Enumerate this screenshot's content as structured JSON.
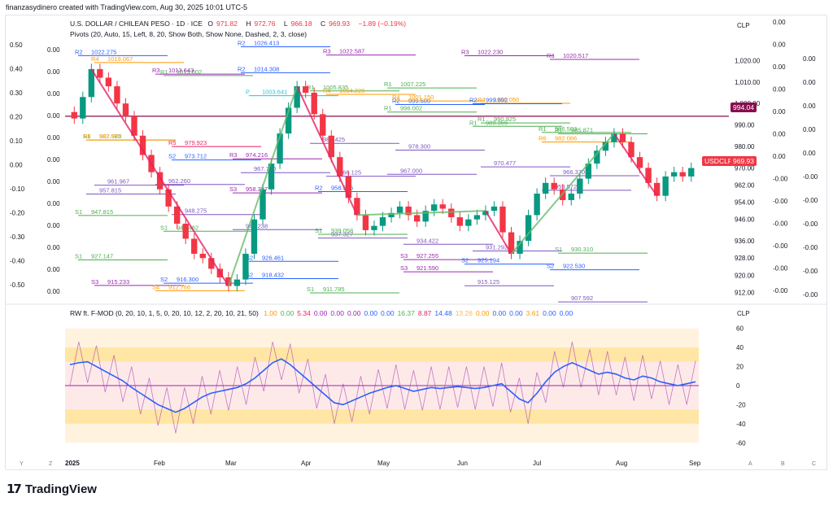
{
  "header": {
    "created_by": "finanzasydinero created with TradingView.com, Aug 30, 2025 10:01 UTC-5"
  },
  "symbol": {
    "title": "U.S. DOLLAR / CHILEAN PESO · 1D · ICE",
    "ohlc": {
      "o_label": "O",
      "o": "971.82",
      "h_label": "H",
      "h": "972.76",
      "l_label": "L",
      "l": "966.18",
      "c_label": "C",
      "c": "969.93",
      "change": "−1.89 (−0.19%)"
    },
    "ticker_badge": "USDCLP",
    "last_price": "969.93",
    "line_price": "994.04",
    "currency": "CLP"
  },
  "indicators": {
    "pivots": "Pivots (20, Auto, 15, Left, 8, 20, Show Both, Show None, Dashed, 2, 3, close)",
    "oscillator_title": "RW ft. F-MOD (0, 20, 10, 1, 5, 0, 20, 10, 12, 2, 20, 10, 21, 50)",
    "oscillator_values": [
      {
        "v": "1.00",
        "c": "#ff9800"
      },
      {
        "v": "0.00",
        "c": "#4caf50"
      },
      {
        "v": "5.34",
        "c": "#e91e63"
      },
      {
        "v": "0.00",
        "c": "#9c27b0"
      },
      {
        "v": "0.00",
        "c": "#9c27b0"
      },
      {
        "v": "0.00",
        "c": "#9c27b0"
      },
      {
        "v": "0.00",
        "c": "#2962ff"
      },
      {
        "v": "0.00",
        "c": "#2962ff"
      },
      {
        "v": "16.37",
        "c": "#4caf50"
      },
      {
        "v": "8.87",
        "c": "#e91e63"
      },
      {
        "v": "14.48",
        "c": "#2962ff"
      },
      {
        "v": "13.26",
        "c": "#ffb74d"
      },
      {
        "v": "0.00",
        "c": "#ff9800"
      },
      {
        "v": "0.00",
        "c": "#2962ff"
      },
      {
        "v": "0.00",
        "c": "#2962ff"
      },
      {
        "v": "3.61",
        "c": "#ff9800"
      },
      {
        "v": "0.00",
        "c": "#2962ff"
      },
      {
        "v": "0.00",
        "c": "#2962ff"
      }
    ]
  },
  "chart_data": {
    "type": "candlestick",
    "x_ticks": [
      "2025",
      "Feb",
      "Mar",
      "Apr",
      "May",
      "Jun",
      "Jul",
      "Aug",
      "Sep"
    ],
    "price_axis_ticks": [
      "1,020.00",
      "1,010.00",
      "1,000.00",
      "990.00",
      "980.00",
      "970.00",
      "962.00",
      "954.00",
      "946.00",
      "936.00",
      "928.00",
      "920.00",
      "912.00"
    ],
    "left_scale": [
      "0.50",
      "0.40",
      "0.30",
      "0.20",
      "0.10",
      "0.00",
      "-0.10",
      "-0.20",
      "-0.30",
      "-0.40",
      "-0.50"
    ],
    "left_scale2": [
      "0.00",
      "0.00",
      "0.00",
      "0.00",
      "0.00",
      "0.00",
      "0.00",
      "0.00",
      "0.00",
      "0.00",
      "0.00",
      "0.00"
    ],
    "right_scale": [
      "0.00",
      "0.00",
      "0.00",
      "0.00",
      "0.00",
      "0.00",
      "0.00",
      "-0.00",
      "-0.00",
      "-0.00",
      "-0.00",
      "-0.00",
      "-0.00"
    ],
    "far_right_scale": [
      "0.00",
      "0.00",
      "0.00",
      "0.00",
      "0.00",
      "-0.00",
      "-0.00",
      "-0.00",
      "-0.00",
      "-0.00",
      "-0.00"
    ],
    "closes": [
      993,
      1003,
      1016,
      1012,
      1008,
      1000,
      994,
      985,
      976,
      968,
      960,
      952,
      944,
      937,
      930,
      928,
      923,
      919,
      915,
      918,
      930,
      946,
      960,
      972,
      986,
      998,
      1008,
      1005,
      995,
      985,
      975,
      966,
      956,
      948,
      941,
      943,
      947,
      949,
      952,
      948,
      945,
      950,
      953,
      951,
      947,
      943,
      946,
      948,
      950,
      952,
      940,
      930,
      936,
      948,
      958,
      963,
      960,
      955,
      958,
      965,
      972,
      978,
      982,
      986,
      982,
      975,
      970,
      963,
      957,
      966,
      968,
      966,
      969.93
    ],
    "pivot_levels": [
      {
        "label": "R2",
        "value": "1022.275"
      },
      {
        "label": "R1",
        "value": "1013.002"
      },
      {
        "label": "P",
        "value": "1003.641"
      },
      {
        "label": "R1",
        "value": "1005.835"
      },
      {
        "label": "R2",
        "value": "999.500"
      },
      {
        "label": "R1",
        "value": "990.925"
      },
      {
        "label": "R1",
        "value": "986.503"
      },
      {
        "label": "S1",
        "value": "982.985"
      },
      {
        "label": "S2",
        "value": "973.712"
      },
      {
        "label": "S3",
        "value": "958.337"
      },
      {
        "label": "S1",
        "value": "939.058"
      },
      {
        "label": "S3",
        "value": "927.255"
      },
      {
        "label": "R3",
        "value": "1022.230"
      },
      {
        "label": "R3",
        "value": "1020.517"
      },
      {
        "label": "R4",
        "value": "1019.067"
      },
      {
        "label": "R3",
        "value": "1013.643"
      },
      {
        "label": "R2",
        "value": "1014.308"
      },
      {
        "label": "R4",
        "value": "1004.220"
      },
      {
        "label": "R1",
        "value": "996.002"
      },
      {
        "label": "R1",
        "value": "989.355"
      },
      {
        "label": "S1",
        "value": "930.310"
      },
      {
        "label": "S1",
        "value": "927.147"
      },
      {
        "label": "S2",
        "value": "916.300"
      },
      {
        "label": "S2",
        "value": "918.432"
      },
      {
        "label": "S1",
        "value": "911.785"
      },
      {
        "label": "R4",
        "value": "1001.150"
      },
      {
        "label": "R4",
        "value": "1000.050"
      },
      {
        "label": "R6",
        "value": "982.066"
      },
      {
        "label": "R6",
        "value": "982.972"
      },
      {
        "label": "R5",
        "value": "979.923"
      },
      {
        "label": "R3",
        "value": "974.216"
      },
      {
        "label": "R2",
        "value": "958.966"
      },
      {
        "label": "S3",
        "value": "921.590"
      },
      {
        "label": "S2",
        "value": "925.194"
      },
      {
        "label": "S2",
        "value": "922.530"
      },
      {
        "label": "S3",
        "value": "915.233"
      },
      {
        "label": "S4",
        "value": "912.766"
      },
      {
        "label": "R2",
        "value": "1026.413"
      },
      {
        "label": "R3",
        "value": "1022.587"
      },
      {
        "label": "R1",
        "value": "1007.225"
      },
      {
        "label": "R2",
        "value": "999.892"
      },
      {
        "label": "R1",
        "value": "985.871"
      },
      {
        "label": "S1",
        "value": "947.815"
      },
      {
        "label": "S1",
        "value": "940.482"
      },
      {
        "label": "S2",
        "value": "926.461"
      },
      {
        "label": "",
        "value": "981.425"
      },
      {
        "label": "",
        "value": "978.300"
      },
      {
        "label": "",
        "value": "970.477"
      },
      {
        "label": "",
        "value": "959.572"
      },
      {
        "label": "",
        "value": "957.815"
      },
      {
        "label": "",
        "value": "948.275"
      },
      {
        "label": "",
        "value": "941.238"
      },
      {
        "label": "",
        "value": "937.327"
      },
      {
        "label": "",
        "value": "934.422"
      },
      {
        "label": "",
        "value": "915.125"
      },
      {
        "label": "",
        "value": "966.370"
      },
      {
        "label": "",
        "value": "961.967"
      },
      {
        "label": "",
        "value": "962.260"
      },
      {
        "label": "",
        "value": "967.790"
      },
      {
        "label": "",
        "value": "966.125"
      },
      {
        "label": "",
        "value": "967.000"
      },
      {
        "label": "",
        "value": "931.292"
      },
      {
        "label": "",
        "value": "907.592"
      }
    ],
    "oscillator_axis": [
      "60",
      "40",
      "20",
      "0",
      "-20",
      "-40",
      "-60"
    ],
    "oscillator_blue": [
      22,
      24,
      25,
      20,
      15,
      10,
      5,
      -2,
      -8,
      -14,
      -20,
      -24,
      -28,
      -24,
      -18,
      -12,
      -8,
      -6,
      -4,
      -2,
      2,
      8,
      16,
      24,
      28,
      22,
      14,
      6,
      -2,
      -10,
      -18,
      -20,
      -16,
      -12,
      -8,
      -5,
      -2,
      0,
      -3,
      -6,
      -4,
      -2,
      -3,
      -2,
      -1,
      -2,
      -3,
      -2,
      0,
      2,
      -6,
      -14,
      -18,
      -8,
      4,
      14,
      20,
      24,
      20,
      16,
      12,
      14,
      12,
      8,
      6,
      10,
      8,
      4,
      2,
      0,
      2,
      4
    ],
    "controls_bottom": [
      "Y",
      "Z",
      "A",
      "B",
      "C"
    ]
  }
}
